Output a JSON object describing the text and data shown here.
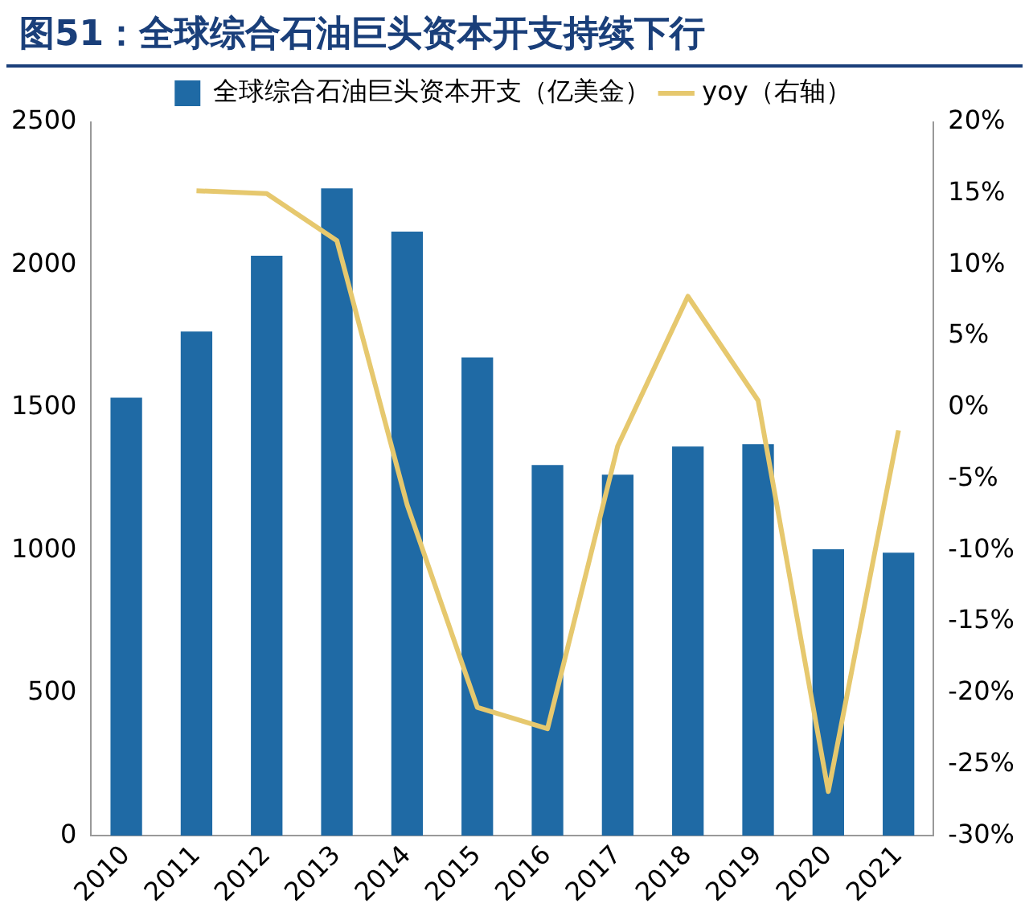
{
  "chart_data": {
    "type": "bar",
    "title": "图51：全球综合石油巨头资本开支持续下行",
    "categories": [
      "2010",
      "2011",
      "2012",
      "2013",
      "2014",
      "2015",
      "2016",
      "2017",
      "2018",
      "2019",
      "2020",
      "2021"
    ],
    "series": [
      {
        "name": "全球综合石油巨头资本开支（亿美金）",
        "color": "#1f6aa5",
        "values": [
          1535,
          1767,
          2032,
          2268,
          2117,
          1676,
          1299,
          1265,
          1364,
          1372,
          1004,
          992
        ]
      },
      {
        "name": "yoy（右轴）",
        "type": "line",
        "axis": "y2",
        "color": "#e6c86e",
        "values": [
          null,
          15.2,
          15.0,
          11.7,
          -6.8,
          -21.0,
          -22.5,
          -2.7,
          7.8,
          0.5,
          -26.9,
          -1.6
        ]
      }
    ],
    "ylim": [
      0,
      2500
    ],
    "yticks": [
      0,
      500,
      1000,
      1500,
      2000,
      2500
    ],
    "y2lim": [
      -30,
      20
    ],
    "y2ticks": [
      {
        "value": -30,
        "label": "-30%"
      },
      {
        "value": -25,
        "label": "-25%"
      },
      {
        "value": -20,
        "label": "-20%"
      },
      {
        "value": -15,
        "label": "-15%"
      },
      {
        "value": -10,
        "label": "-10%"
      },
      {
        "value": -5,
        "label": "-5%"
      },
      {
        "value": 0,
        "label": "0%"
      },
      {
        "value": 5,
        "label": "5%"
      },
      {
        "value": 10,
        "label": "10%"
      },
      {
        "value": 15,
        "label": "15%"
      },
      {
        "value": 20,
        "label": "20%"
      }
    ],
    "grid": false,
    "legend": "top",
    "marker": "none",
    "line_style": "solid"
  }
}
